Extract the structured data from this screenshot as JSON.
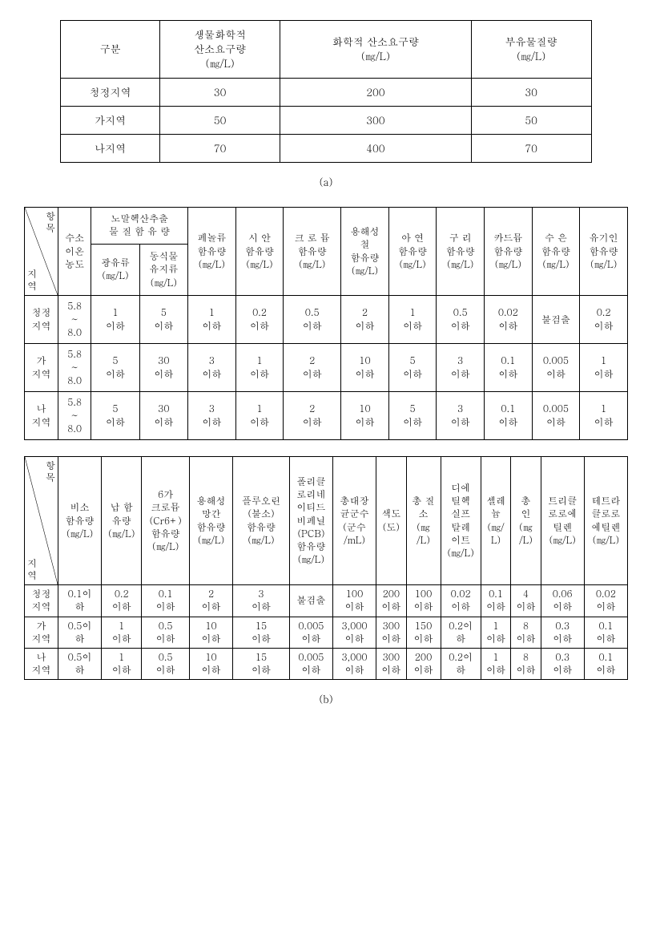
{
  "tableA": {
    "headers": [
      "구분",
      "생물화학적\n산소요구량\n(㎎/L)",
      "화학적 산소요구량\n(㎎/L)",
      "부유물질량\n(㎎/L)"
    ],
    "rows": [
      [
        "청정지역",
        "30",
        "200",
        "30"
      ],
      [
        "가지역",
        "50",
        "300",
        "50"
      ],
      [
        "나지역",
        "70",
        "400",
        "70"
      ]
    ],
    "caption": "(a)"
  },
  "tableB": {
    "diag_top": "항\n목",
    "diag_bot": "지\n역",
    "headers1": {
      "h1": "수소\n이온\n농도",
      "h2_group": "노말헥산추출\n물 질 함 유 량",
      "h2_a": "광유류\n(㎎/L)",
      "h2_b": "동식물\n유지류\n(㎎/L)",
      "h3": "페놀류\n함유량\n(㎎/L)",
      "h4": "시 안\n함유량\n(㎎/L)",
      "h5": "크 로 뮴\n함유량\n(㎎/L)",
      "h6": "용해성\n철\n함유량\n(㎎/L)",
      "h7": "아 연\n함유량\n(㎎/L)",
      "h8": "구 리\n함유량\n(㎎/L)",
      "h9": "카드뮴\n함유량\n(㎎/L)",
      "h10": "수 은\n함유량\n(㎎/L)",
      "h11": "유기인\n함유량\n(㎎/L)"
    },
    "rows": [
      {
        "region": "청정\n지역",
        "ph": "5.8\n~\n8.0",
        "c": [
          "1\n이하",
          "5\n이하",
          "1\n이하",
          "0.2\n이하",
          "0.5\n이하",
          "2\n이하",
          "1\n이하",
          "0.5\n이하",
          "0.02\n이하",
          "불검출",
          "0.2\n이하"
        ]
      },
      {
        "region": "가\n지역",
        "ph": "5.8\n~\n8.0",
        "c": [
          "5\n이하",
          "30\n이하",
          "3\n이하",
          "1\n이하",
          "2\n이하",
          "10\n이하",
          "5\n이하",
          "3\n이하",
          "0.1\n이하",
          "0.005\n이하",
          "1\n이하"
        ]
      },
      {
        "region": "나\n지역",
        "ph": "5.8\n~\n8.0",
        "c": [
          "5\n이하",
          "30\n이하",
          "3\n이하",
          "1\n이하",
          "2\n이하",
          "10\n이하",
          "5\n이하",
          "3\n이하",
          "0.1\n이하",
          "0.005\n이하",
          "1\n이하"
        ]
      }
    ]
  },
  "tableC": {
    "diag_top": "항\n목",
    "diag_bot": "지\n역",
    "headers": [
      "비소\n함유량\n(㎎/L)",
      "납 함\n유량\n(㎎/L)",
      "6가\n크로뮴\n(Cr6+)\n함유량\n(㎎/L)",
      "용해성\n망간\n함유량\n(㎎/L)",
      "플루오린\n(불소)\n함유량\n(㎎/L)",
      "폴리클\n로리네\n이티드\n비페닐\n(PCB)\n함유량\n(㎎/L)",
      "총대장\n균군수\n(군수\n/mL)",
      "색도\n(도)",
      "총 질\n소\n(㎎\n/L)",
      "디에\n틸헥\n실프\n탈레\n이트\n(㎎/L)",
      "셀레\n늄\n(㎎/\nL)",
      "총\n인\n(㎎\n/L)",
      "트리클\n로로에\n틸렌\n(㎎/L)",
      "테트라\n클로로\n에틸렌\n(㎎/L)"
    ],
    "rows": [
      {
        "region": "청정\n지역",
        "c": [
          "0.1이\n하",
          "0.2\n이하",
          "0.1\n이하",
          "2\n이하",
          "3\n이하",
          "불검출",
          "100\n이하",
          "200\n이하",
          "100\n이하",
          "0.02\n이하",
          "0.1\n이하",
          "4\n이하",
          "0.06\n이하",
          "0.02\n이하"
        ]
      },
      {
        "region": "가\n지역",
        "c": [
          "0.5이\n하",
          "1\n이하",
          "0.5\n이하",
          "10\n이하",
          "15\n이하",
          "0.005\n이하",
          "3,000\n이하",
          "300\n이하",
          "150\n이하",
          "0.2이\n하",
          "1\n이하",
          "8\n이하",
          "0.3\n이하",
          "0.1\n이하"
        ]
      },
      {
        "region": "나\n지역",
        "c": [
          "0.5이\n하",
          "1\n이하",
          "0.5\n이하",
          "10\n이하",
          "15\n이하",
          "0.005\n이하",
          "3,000\n이하",
          "300\n이하",
          "200\n이하",
          "0.2이\n하",
          "1\n이하",
          "8\n이하",
          "0.3\n이하",
          "0.1\n이하"
        ]
      }
    ],
    "caption": "(b)"
  }
}
